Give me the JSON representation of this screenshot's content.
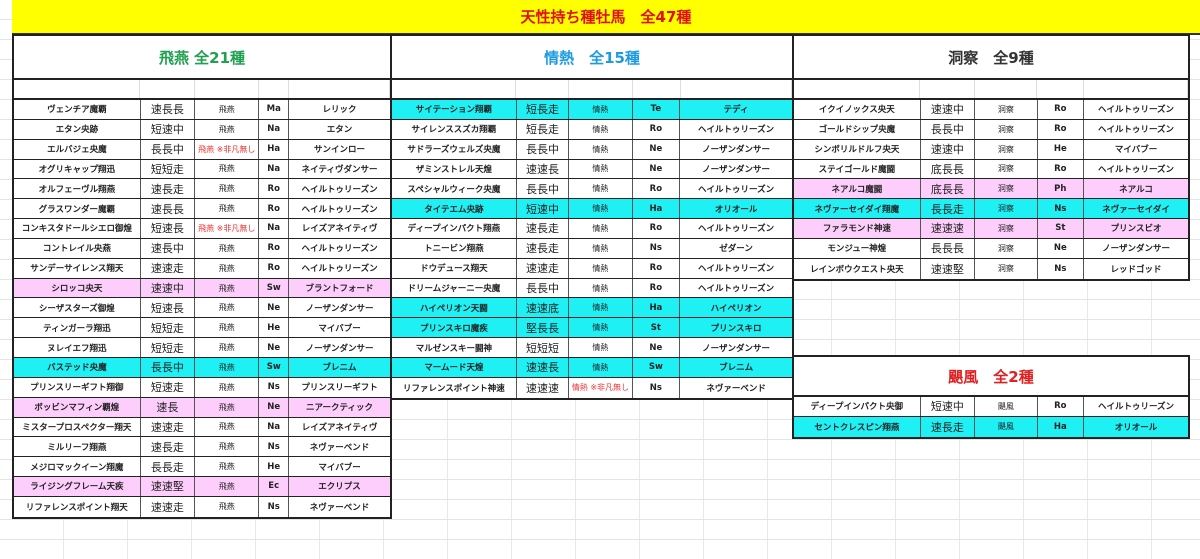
{
  "title": "天性持ち種牡馬　全47種",
  "colors": {
    "title_bg": "#ffff00",
    "title_text": "#e01010",
    "highlight_cyan": "#1ef0f4",
    "highlight_pink": "#fdcdfb",
    "note_red": "#f03030"
  },
  "sections": [
    {
      "id": "hien",
      "title": "飛燕 全21種",
      "color": "#20a050",
      "rows": [
        [
          "ヴェンチア魔覇",
          "速長長",
          "飛燕",
          "Ma",
          "レリック",
          ""
        ],
        [
          "エタン央跡",
          "短速中",
          "飛燕",
          "Na",
          "エタン",
          ""
        ],
        [
          "エルバジェ央魔",
          "長長中",
          "飛燕 ※非凡無し",
          "Ha",
          "サンインロー",
          "",
          1
        ],
        [
          "オグリキャップ翔迅",
          "短短走",
          "飛燕",
          "Na",
          "ネイティヴダンサー",
          ""
        ],
        [
          "オルフェーヴル翔燕",
          "速長走",
          "飛燕",
          "Ro",
          "ヘイルトゥリーズン",
          ""
        ],
        [
          "グラスワンダー魔覇",
          "速長長",
          "飛燕",
          "Ro",
          "ヘイルトゥリーズン",
          ""
        ],
        [
          "コンキスタドールシエロ御煌",
          "短速長",
          "飛燕 ※非凡無し",
          "Na",
          "レイズアネイティヴ",
          "",
          1
        ],
        [
          "コントレイル央燕",
          "速長中",
          "飛燕",
          "Ro",
          "ヘイルトゥリーズン",
          ""
        ],
        [
          "サンデーサイレンス翔天",
          "速速走",
          "飛燕",
          "Ro",
          "ヘイルトゥリーズン",
          ""
        ],
        [
          "シロッコ央天",
          "速速中",
          "飛燕",
          "Sw",
          "ブラントフォード",
          "pink"
        ],
        [
          "シーザスターズ御煌",
          "短速長",
          "飛燕",
          "Ne",
          "ノーザンダンサー",
          ""
        ],
        [
          "ティンガーラ翔迅",
          "短短走",
          "飛燕",
          "He",
          "マイバブー",
          ""
        ],
        [
          "ヌレイエフ翔迅",
          "短短走",
          "飛燕",
          "Ne",
          "ノーザンダンサー",
          ""
        ],
        [
          "バステッド央魔",
          "長長中",
          "飛燕",
          "Sw",
          "ブレニム",
          "cyan"
        ],
        [
          "プリンスリーギフト翔御",
          "短速走",
          "飛燕",
          "Ns",
          "プリンスリーギフト",
          ""
        ],
        [
          "ボッビンマフィン覇煌",
          "速長",
          "飛燕",
          "Ne",
          "ニアークティック",
          "pink"
        ],
        [
          "ミスタープロスペクター翔天",
          "速速走",
          "飛燕",
          "Na",
          "レイズアネイティヴ",
          ""
        ],
        [
          "ミルリーフ翔燕",
          "速長走",
          "飛燕",
          "Ns",
          "ネヴァーベンド",
          ""
        ],
        [
          "メジロマックイーン翔魔",
          "長長走",
          "飛燕",
          "He",
          "マイバブー",
          ""
        ],
        [
          "ライジングフレーム天疾",
          "速速堅",
          "飛燕",
          "Ec",
          "エクリプス",
          "pink"
        ],
        [
          "リファレンスポイント翔天",
          "速速走",
          "飛燕",
          "Ns",
          "ネヴァーベンド",
          ""
        ]
      ]
    },
    {
      "id": "jonetsu",
      "title": "情熱　全15種",
      "color": "#1e9be0",
      "rows": [
        [
          "サイテーション翔覇",
          "短長走",
          "情熱",
          "Te",
          "テディ",
          "cyan"
        ],
        [
          "サイレンススズカ翔覇",
          "短長走",
          "情熱",
          "Ro",
          "ヘイルトゥリーズン",
          ""
        ],
        [
          "サドラーズウェルズ央魔",
          "長長中",
          "情熱",
          "Ne",
          "ノーザンダンサー",
          ""
        ],
        [
          "ザミンストレル天煌",
          "速速長",
          "情熱",
          "Ne",
          "ノーザンダンサー",
          ""
        ],
        [
          "スペシャルウィーク央魔",
          "長長中",
          "情熱",
          "Ro",
          "ヘイルトゥリーズン",
          ""
        ],
        [
          "タイテエム央跡",
          "短速中",
          "情熱",
          "Ha",
          "オリオール",
          "cyan"
        ],
        [
          "ディープインパクト翔燕",
          "速長走",
          "情熱",
          "Ro",
          "ヘイルトゥリーズン",
          ""
        ],
        [
          "トニービン翔燕",
          "速長走",
          "情熱",
          "Ns",
          "ゼダーン",
          ""
        ],
        [
          "ドウデュース翔天",
          "速速走",
          "情熱",
          "Ro",
          "ヘイルトゥリーズン",
          ""
        ],
        [
          "ドリームジャーニー央魔",
          "長長中",
          "情熱",
          "Ro",
          "ヘイルトゥリーズン",
          ""
        ],
        [
          "ハイペリオン天闘",
          "速速底",
          "情熱",
          "Ha",
          "ハイペリオン",
          "cyan"
        ],
        [
          "プリンスキロ魔疾",
          "堅長長",
          "情熱",
          "St",
          "プリンスキロ",
          "cyan"
        ],
        [
          "マルゼンスキー闘神",
          "短短短",
          "情熱",
          "Ne",
          "ノーザンダンサー",
          ""
        ],
        [
          "マームード天煌",
          "速速長",
          "情熱",
          "Sw",
          "ブレニム",
          "cyan"
        ],
        [
          "リファレンスポイント神速",
          "速速速",
          "情熱 ※非凡無し",
          "Ns",
          "ネヴァーベンド",
          "",
          1
        ]
      ]
    },
    {
      "id": "dosatsu",
      "title": "洞察　全9種",
      "color": "#333333",
      "rows": [
        [
          "イクイノックス央天",
          "速速中",
          "洞察",
          "Ro",
          "ヘイルトゥリーズン",
          ""
        ],
        [
          "ゴールドシップ央魔",
          "長長中",
          "洞察",
          "Ro",
          "ヘイルトゥリーズン",
          ""
        ],
        [
          "シンボリルドルフ央天",
          "速速中",
          "洞察",
          "He",
          "マイバブー",
          ""
        ],
        [
          "ステイゴールド魔闘",
          "底長長",
          "洞察",
          "Ro",
          "ヘイルトゥリーズン",
          ""
        ],
        [
          "ネアルコ魔闘",
          "底長長",
          "洞察",
          "Ph",
          "ネアルコ",
          "pink"
        ],
        [
          "ネヴァーセイダイ翔魔",
          "長長走",
          "洞察",
          "Ns",
          "ネヴァーセイダイ",
          "cyan"
        ],
        [
          "ファラモンド神速",
          "速速速",
          "洞察",
          "St",
          "プリンスビオ",
          "pink"
        ],
        [
          "モンジュー神煌",
          "長長長",
          "洞察",
          "Ne",
          "ノーザンダンサー",
          ""
        ],
        [
          "レインボウクエスト央天",
          "速速堅",
          "洞察",
          "Ns",
          "レッドゴッド",
          ""
        ]
      ]
    },
    {
      "id": "reppu",
      "title": "颶風　全2種",
      "color": "#e02020",
      "rows": [
        [
          "ディープインパクト央御",
          "短速中",
          "颶風",
          "Ro",
          "ヘイルトゥリーズン",
          ""
        ],
        [
          "セントクレスピン翔燕",
          "速長走",
          "颶風",
          "Ha",
          "オリオール",
          "cyan"
        ]
      ]
    }
  ]
}
